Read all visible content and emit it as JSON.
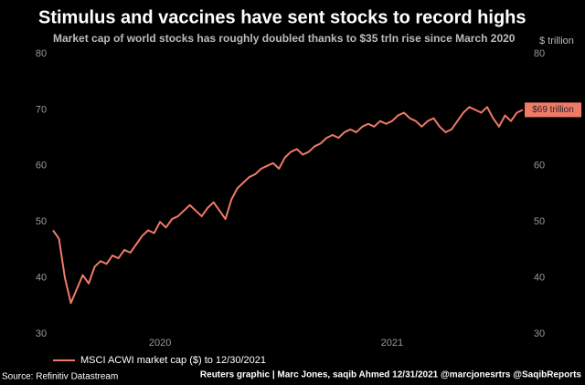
{
  "chart_data": {
    "type": "line",
    "title": "Stimulus and vaccines have sent stocks to record highs",
    "subtitle": "Market cap of world stocks has roughly doubled thanks to $35 trln rise since March 2020",
    "y_label": "$ trillion",
    "end_label": "$69 trillion",
    "source": "Source: Refinitiv Datastream",
    "credit": "Reuters graphic | Marc Jones, saqib Ahmed 12/31/2021 @marcjonesrtrs @SaqibReports",
    "categories": [
      null,
      null,
      null,
      null,
      null,
      null,
      null,
      null,
      null,
      null,
      null,
      null,
      null,
      null,
      null,
      null,
      null,
      null,
      "2020",
      null,
      null,
      null,
      null,
      null,
      null,
      null,
      null,
      null,
      null,
      null,
      null,
      null,
      null,
      null,
      null,
      null,
      null,
      null,
      null,
      null,
      null,
      null,
      null,
      null,
      null,
      null,
      null,
      null,
      null,
      null,
      null,
      null,
      null,
      null,
      null,
      null,
      null,
      "2021",
      null,
      null,
      null,
      null,
      null,
      null,
      null,
      null,
      null,
      null,
      null,
      null,
      null,
      null,
      null,
      null,
      null,
      null,
      null,
      null,
      null,
      null
    ],
    "series": [
      {
        "name": "MSCI ACWI market cap ($) to 12/30/2021",
        "color": "#f07a68",
        "values": [
          48.5,
          47,
          40,
          35.5,
          38,
          40.5,
          39,
          42,
          43,
          42.5,
          44,
          43.5,
          45,
          44.5,
          46,
          47.5,
          48.5,
          48,
          50,
          49,
          50.5,
          51,
          52,
          53,
          52,
          51,
          52.5,
          53.5,
          52,
          50.5,
          54,
          56,
          57,
          58,
          58.5,
          59.5,
          60,
          60.5,
          59.5,
          61.5,
          62.5,
          63,
          62,
          62.5,
          63.5,
          64,
          65,
          65.5,
          65,
          66,
          66.5,
          66,
          67,
          67.5,
          67,
          68,
          67.5,
          68,
          69,
          69.5,
          68.5,
          68,
          67,
          68,
          68.5,
          67,
          66,
          66.5,
          68,
          69.5,
          70.5,
          70,
          69.5,
          70.5,
          68.5,
          67,
          69,
          68,
          69.5,
          70
        ]
      }
    ],
    "ylim": [
      30,
      80
    ],
    "yticks": [
      30,
      40,
      50,
      60,
      70,
      80
    ],
    "grid": false
  }
}
